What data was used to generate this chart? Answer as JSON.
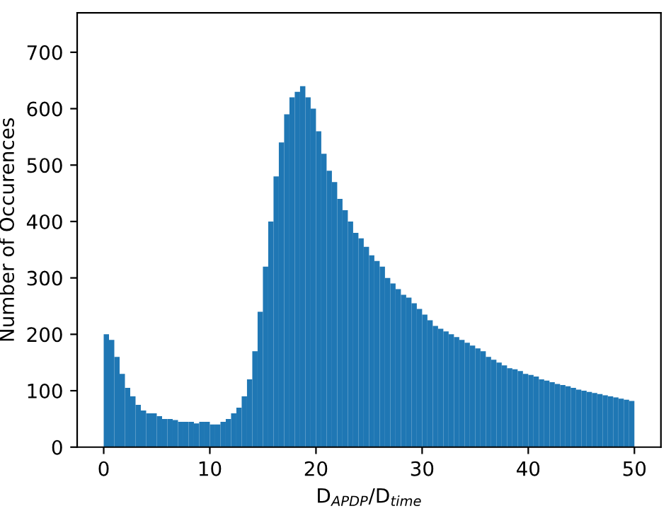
{
  "chart_data": {
    "type": "histogram",
    "xlabel": "D$_{APDP}$/D$_{time}$",
    "ylabel": "Number of Occurences",
    "color": "#1f77b4",
    "bins": [
      0,
      0.5,
      1,
      1.5,
      2,
      2.5,
      3,
      3.5,
      4,
      4.5,
      5,
      5.5,
      6,
      6.5,
      7,
      7.5,
      8,
      8.5,
      9,
      9.5,
      10,
      10.5,
      11,
      11.5,
      12,
      12.5,
      13,
      13.5,
      14,
      14.5,
      15,
      15.5,
      16,
      16.5,
      17,
      17.5,
      18,
      18.5,
      19,
      19.5,
      20,
      20.5,
      21,
      21.5,
      22,
      22.5,
      23,
      23.5,
      24,
      24.5,
      25,
      25.5,
      26,
      26.5,
      27,
      27.5,
      28,
      28.5,
      29,
      29.5,
      30,
      30.5,
      31,
      31.5,
      32,
      32.5,
      33,
      33.5,
      34,
      34.5,
      35,
      35.5,
      36,
      36.5,
      37,
      37.5,
      38,
      38.5,
      39,
      39.5,
      40,
      40.5,
      41,
      41.5,
      42,
      42.5,
      43,
      43.5,
      44,
      44.5,
      45,
      45.5,
      46,
      46.5,
      47,
      47.5,
      48,
      48.5,
      49,
      49.5,
      50
    ],
    "values": [
      200,
      190,
      160,
      130,
      105,
      90,
      75,
      65,
      60,
      60,
      55,
      50,
      50,
      48,
      45,
      45,
      45,
      42,
      45,
      45,
      40,
      40,
      45,
      50,
      60,
      70,
      90,
      120,
      170,
      240,
      320,
      400,
      480,
      540,
      590,
      620,
      630,
      640,
      620,
      600,
      560,
      520,
      490,
      470,
      440,
      420,
      400,
      380,
      370,
      355,
      340,
      330,
      320,
      300,
      290,
      280,
      270,
      265,
      255,
      245,
      235,
      225,
      215,
      210,
      205,
      200,
      195,
      190,
      185,
      180,
      175,
      170,
      160,
      155,
      150,
      145,
      140,
      138,
      135,
      130,
      128,
      125,
      120,
      118,
      115,
      112,
      110,
      108,
      105,
      102,
      100,
      98,
      96,
      94,
      92,
      90,
      88,
      86,
      84,
      82
    ],
    "xlim": [
      -2.5,
      52.5
    ],
    "ylim": [
      0,
      770
    ],
    "xticks": [
      0,
      10,
      20,
      30,
      40,
      50
    ],
    "yticks": [
      0,
      100,
      200,
      300,
      400,
      500,
      600,
      700
    ],
    "grid": false
  }
}
